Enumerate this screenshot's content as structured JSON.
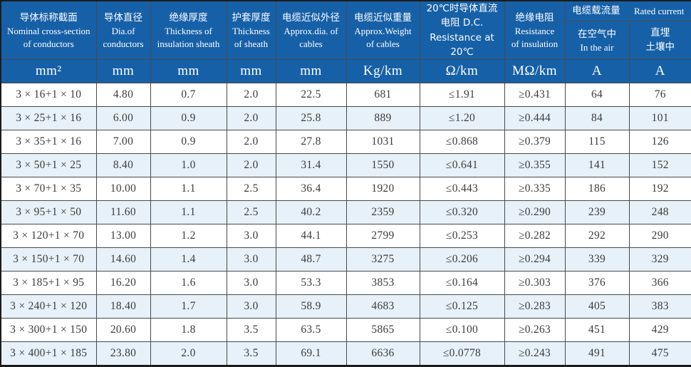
{
  "table": {
    "columns": [
      {
        "lines": [
          "导体标称截面",
          "Nominal cross-section",
          "of conductors"
        ],
        "unit": "mm²"
      },
      {
        "lines": [
          "导体直径",
          "Dia.of",
          "conductors"
        ],
        "unit": "mm"
      },
      {
        "lines": [
          "绝缘厚度",
          "Thickness of",
          "insulation sheath"
        ],
        "unit": "mm"
      },
      {
        "lines": [
          "护套厚度",
          "Thickness",
          "of sheath"
        ],
        "unit": "mm"
      },
      {
        "lines": [
          "电缆近似外径",
          "Approx.dia. of",
          "cables"
        ],
        "unit": "mm"
      },
      {
        "lines": [
          "电缆近似重量",
          "Approx.Weight",
          "of cables"
        ],
        "unit": "Kg/km"
      },
      {
        "lines": [
          "20℃时导体直流",
          "电阻 D.C.",
          "Resistance at 20℃"
        ],
        "unit": "Ω/km"
      },
      {
        "lines": [
          "绝缘电阻",
          "Resistance",
          "of insulation"
        ],
        "unit": "MΩ/km"
      }
    ],
    "group": {
      "zh": "电缆载流量",
      "en": "Rated current",
      "sub": [
        {
          "lines": [
            "在空气中",
            "In the air"
          ],
          "unit": "A"
        },
        {
          "lines": [
            "直埋",
            "土壤中"
          ],
          "unit": "A"
        }
      ]
    },
    "rows": [
      [
        "3 × 16+1 × 10",
        "4.80",
        "0.7",
        "2.0",
        "22.5",
        "681",
        "≤1.91",
        "≥0.431",
        "64",
        "76"
      ],
      [
        "3 × 25+1 × 16",
        "6.00",
        "0.9",
        "2.0",
        "25.8",
        "889",
        "≤1.20",
        "≥0.444",
        "84",
        "101"
      ],
      [
        "3 × 35+1 × 16",
        "7.00",
        "0.9",
        "2.0",
        "27.8",
        "1031",
        "≤0.868",
        "≥0.379",
        "115",
        "126"
      ],
      [
        "3 × 50+1 × 25",
        "8.40",
        "1.0",
        "2.0",
        "31.4",
        "1550",
        "≤0.641",
        "≥0.355",
        "141",
        "152"
      ],
      [
        "3 × 70+1 × 35",
        "10.00",
        "1.1",
        "2.5",
        "36.4",
        "1920",
        "≤0.443",
        "≥0.335",
        "186",
        "192"
      ],
      [
        "3 × 95+1 × 50",
        "11.60",
        "1.1",
        "2.5",
        "40.2",
        "2359",
        "≤0.320",
        "≥0.290",
        "239",
        "248"
      ],
      [
        "3 × 120+1 × 70",
        "13.00",
        "1.2",
        "3.0",
        "44.1",
        "2799",
        "≤0.253",
        "≥0.282",
        "292",
        "290"
      ],
      [
        "3 × 150+1 × 70",
        "14.60",
        "1.4",
        "3.0",
        "48.7",
        "3275",
        "≤0.206",
        "≥0.294",
        "339",
        "329"
      ],
      [
        "3 × 185+1 × 95",
        "16.20",
        "1.6",
        "3.0",
        "53.3",
        "3853",
        "≤0.164",
        "≥0.303",
        "376",
        "366"
      ],
      [
        "3 × 240+1 × 120",
        "18.40",
        "1.7",
        "3.0",
        "58.9",
        "4683",
        "≤0.125",
        "≥0.283",
        "405",
        "383"
      ],
      [
        "3 × 300+1 × 150",
        "20.60",
        "1.8",
        "3.5",
        "63.5",
        "5865",
        "≤0.100",
        "≥0.263",
        "451",
        "429"
      ],
      [
        "3 × 400+1 × 185",
        "23.80",
        "2.0",
        "3.5",
        "69.1",
        "6636",
        "≤0.0778",
        "≥0.243",
        "491",
        "475"
      ]
    ],
    "column_names": [
      "nominal-cross-section",
      "conductor-diameter",
      "insulation-thickness",
      "sheath-thickness",
      "approx-diameter",
      "approx-weight",
      "dc-resistance",
      "insulation-resistance",
      "current-in-air",
      "current-buried"
    ]
  },
  "colors": {
    "header_bg": "#1660a8",
    "row_alt_bg": "#e6f1fa",
    "grid_line": "#4a4a4a",
    "outer_border": "#1b1b1b",
    "body_text": "#3c3c3c",
    "header_text": "#ffffff"
  }
}
